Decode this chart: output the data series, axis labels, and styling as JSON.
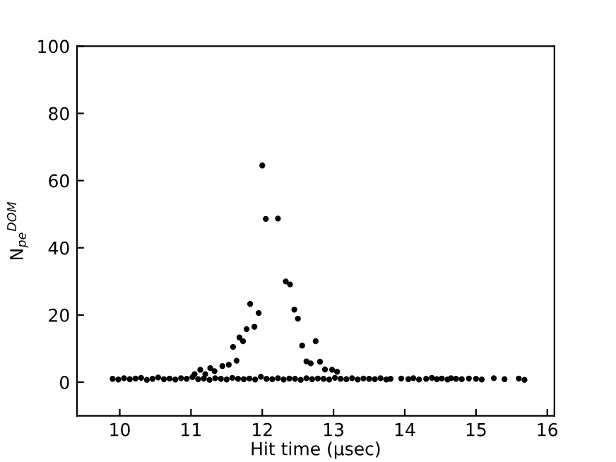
{
  "chart_data": {
    "type": "scatter",
    "xlabel": "Hit time (μsec)",
    "ylabel": "N$_{pe}$$^{DOM}$",
    "xlim": [
      9.4,
      16.1
    ],
    "xticks": [
      10,
      11,
      12,
      13,
      14,
      15,
      16
    ],
    "ylim": [
      -10,
      100
    ],
    "yticks": [
      0,
      20,
      40,
      60,
      80,
      100
    ],
    "grid": false,
    "legend": false,
    "marker": "circle",
    "series": [
      {
        "color": "#000000",
        "x": [
          12.0,
          12.05,
          12.22,
          12.33,
          12.39,
          12.45,
          12.5,
          12.56,
          12.62,
          12.68,
          12.75,
          12.81,
          12.88,
          12.98,
          13.05,
          11.83,
          11.95,
          11.89,
          11.78,
          11.68,
          11.73,
          11.59,
          11.64,
          11.53,
          11.44,
          11.27,
          11.33,
          11.13,
          11.2,
          11.05,
          9.9,
          9.98,
          10.06,
          10.14,
          10.22,
          10.3,
          10.38,
          10.46,
          10.54,
          10.62,
          10.7,
          10.78,
          10.86,
          10.94,
          11.02,
          11.1,
          11.18,
          11.26,
          11.34,
          11.42,
          11.5,
          11.58,
          11.66,
          11.74,
          11.82,
          11.9,
          11.98,
          12.06,
          12.14,
          12.22,
          12.3,
          12.38,
          12.46,
          12.54,
          12.62,
          12.7,
          12.78,
          12.86,
          12.94,
          13.02,
          13.1,
          13.18,
          13.26,
          13.34,
          13.42,
          13.5,
          13.58,
          13.66,
          13.74,
          13.8,
          13.95,
          14.05,
          14.12,
          14.2,
          14.3,
          14.38,
          14.45,
          14.52,
          14.6,
          14.65,
          14.72,
          14.8,
          14.9,
          15.0,
          15.08,
          15.25,
          15.4,
          15.6,
          15.68
        ],
        "values": [
          64.5,
          48.6,
          48.7,
          30.0,
          29.1,
          21.6,
          18.9,
          10.9,
          6.2,
          5.6,
          12.2,
          6.1,
          3.8,
          3.7,
          3.1,
          23.3,
          20.6,
          16.5,
          15.8,
          13.3,
          12.2,
          10.5,
          6.4,
          5.2,
          4.8,
          4.2,
          3.3,
          3.7,
          2.4,
          2.4,
          1.0,
          0.8,
          1.2,
          0.9,
          1.1,
          1.3,
          0.7,
          1.0,
          1.4,
          0.9,
          1.1,
          0.8,
          1.2,
          1.0,
          1.5,
          0.9,
          1.1,
          0.7,
          1.2,
          1.0,
          0.8,
          1.3,
          1.0,
          0.9,
          1.1,
          0.8,
          1.6,
          1.0,
          0.9,
          1.2,
          0.8,
          1.1,
          1.0,
          0.7,
          1.2,
          0.9,
          1.1,
          1.0,
          0.8,
          1.3,
          1.0,
          0.9,
          1.2,
          0.8,
          1.1,
          1.0,
          0.9,
          1.2,
          0.8,
          1.0,
          1.1,
          0.9,
          1.2,
          0.8,
          1.0,
          1.3,
          0.9,
          1.1,
          0.8,
          1.2,
          1.0,
          0.9,
          1.1,
          1.0,
          0.8,
          1.2,
          0.9,
          1.1,
          0.7
        ]
      }
    ]
  }
}
